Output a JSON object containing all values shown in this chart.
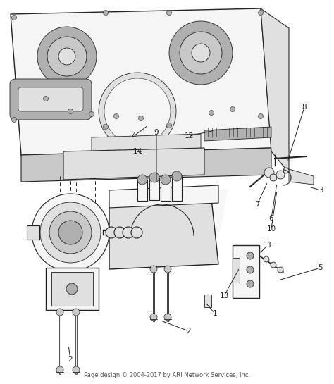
{
  "background_color": "#ffffff",
  "footer_text": "Page design © 2004-2017 by ARI Network Services, Inc.",
  "footer_fontsize": 6.0,
  "footer_color": "#555555",
  "watermark_text": "ARI",
  "watermark_color": "#cccccc",
  "watermark_fontsize": 60,
  "watermark_alpha": 0.15,
  "diagram_color": "#222222",
  "fig_width": 4.74,
  "fig_height": 5.45,
  "dpi": 100,
  "lw_main": 1.0,
  "lw_thin": 0.6,
  "lw_med": 0.8,
  "face_light": "#f5f5f5",
  "face_mid": "#e0e0e0",
  "face_dark": "#c8c8c8",
  "face_darker": "#b0b0b0"
}
